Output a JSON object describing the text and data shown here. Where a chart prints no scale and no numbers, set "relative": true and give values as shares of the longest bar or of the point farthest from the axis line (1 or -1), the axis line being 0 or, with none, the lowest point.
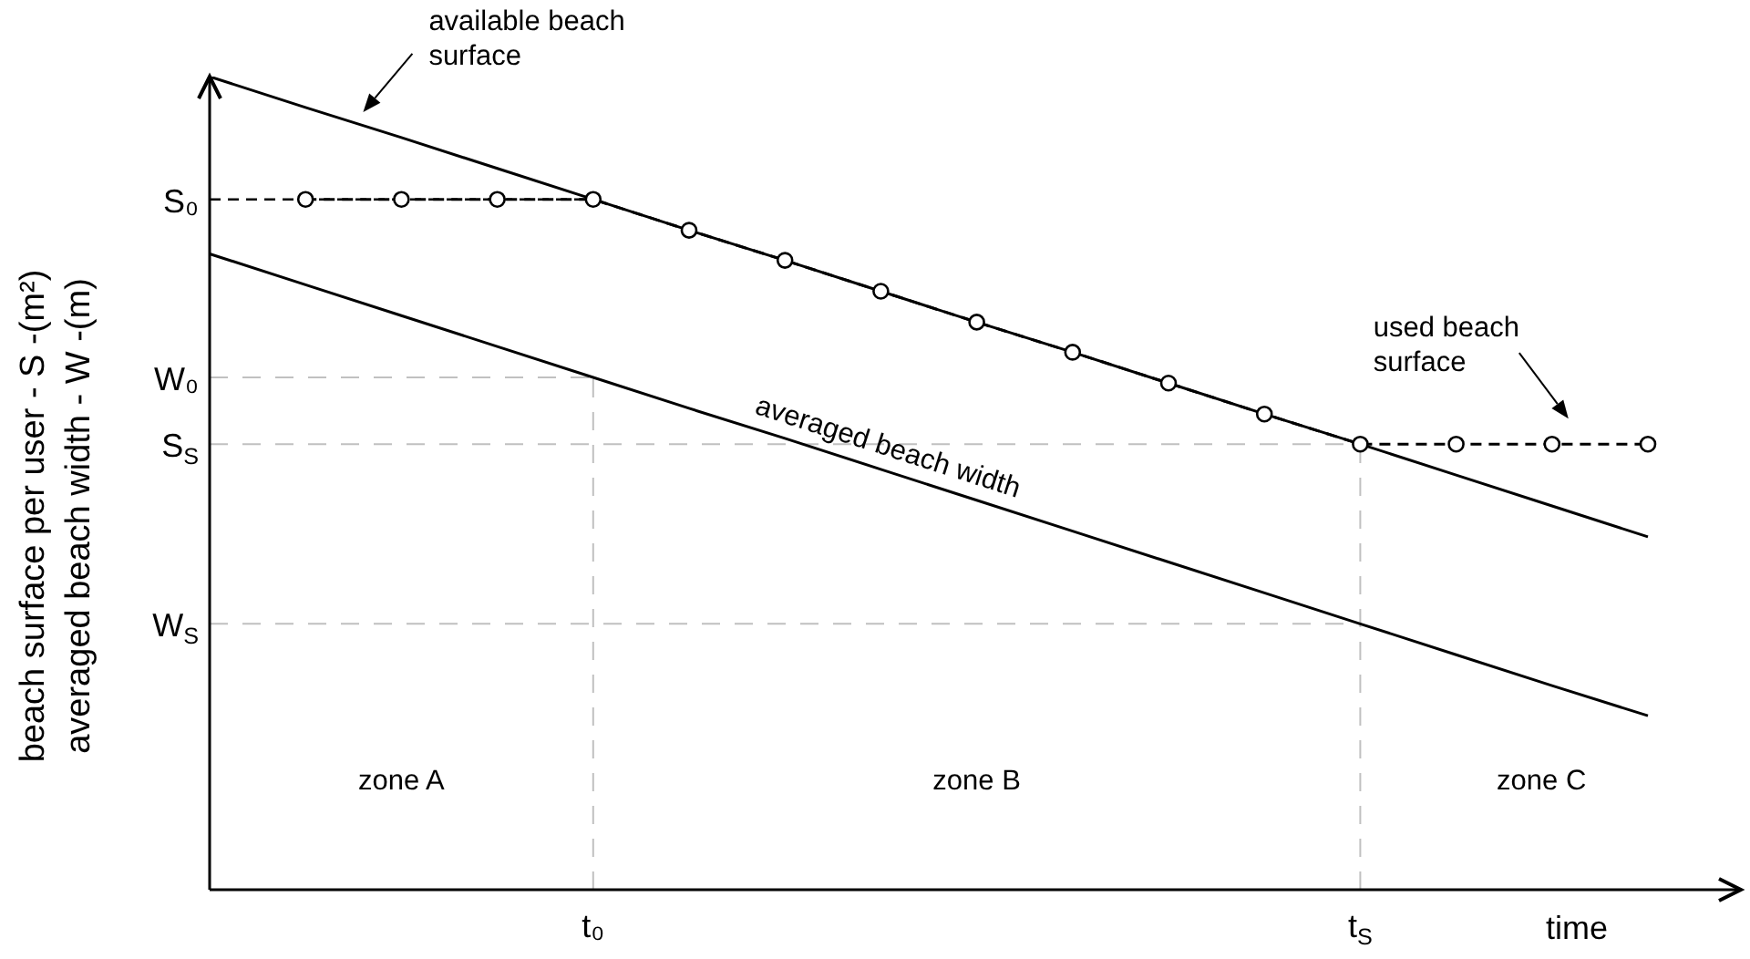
{
  "chart_data": {
    "type": "line",
    "relative": true,
    "xlabel": "time",
    "ylabel": "beach surface per user - S -(m²)\naveraged beach width - W -(m)",
    "marker": "none",
    "line_style": "solid",
    "categories": [
      null,
      null,
      null,
      null,
      "t₀",
      null,
      null,
      null,
      null,
      null,
      null,
      null,
      "t$_{S}$",
      null,
      null,
      null
    ],
    "series": [
      {
        "name": "used beach surface",
        "color": "#000000",
        "line_style": "dashed",
        "marker": "circle",
        "values": [
          null,
          0.849,
          0.849,
          0.849,
          0.849,
          0.811,
          0.774,
          0.736,
          0.698,
          0.661,
          0.623,
          0.585,
          0.548,
          0.548,
          0.548,
          0.548
        ]
      },
      {
        "name": "available beach surface",
        "color": "#000000",
        "values": [
          1,
          0.962,
          0.925,
          0.887,
          0.849,
          0.811,
          0.774,
          0.736,
          0.698,
          0.661,
          0.623,
          0.585,
          0.548,
          0.51,
          0.472,
          0.434
        ]
      },
      {
        "name": "averaged beach width",
        "color": "#000000",
        "values": [
          0.782,
          0.744,
          0.706,
          0.668,
          0.63,
          0.592,
          0.555,
          0.517,
          0.479,
          0.441,
          0.403,
          0.365,
          0.327,
          0.289,
          0.251,
          0.214
        ]
      }
    ],
    "ref_lines": [
      {
        "axis": "y",
        "value": 0.849,
        "label": "S₀",
        "color": "#000000",
        "line_style": "dashed"
      },
      {
        "axis": "y",
        "value": 0.63,
        "label": "W₀",
        "color": "#c0c0c0",
        "line_style": "dashed"
      },
      {
        "axis": "y",
        "value": 0.548,
        "label": "S$_{S}$",
        "color": "#c0c0c0",
        "line_style": "dashed"
      },
      {
        "axis": "y",
        "value": 0.327,
        "label": "W$_{S}$",
        "color": "#c0c0c0",
        "line_style": "dashed"
      },
      {
        "axis": "x",
        "value": "t₀",
        "color": "#c0c0c0",
        "line_style": "dashed"
      },
      {
        "axis": "x",
        "value": "t$_{S}$",
        "color": "#c0c0c0",
        "line_style": "dashed"
      }
    ],
    "annotations": [
      "zone A",
      "zone B",
      "zone C"
    ]
  }
}
